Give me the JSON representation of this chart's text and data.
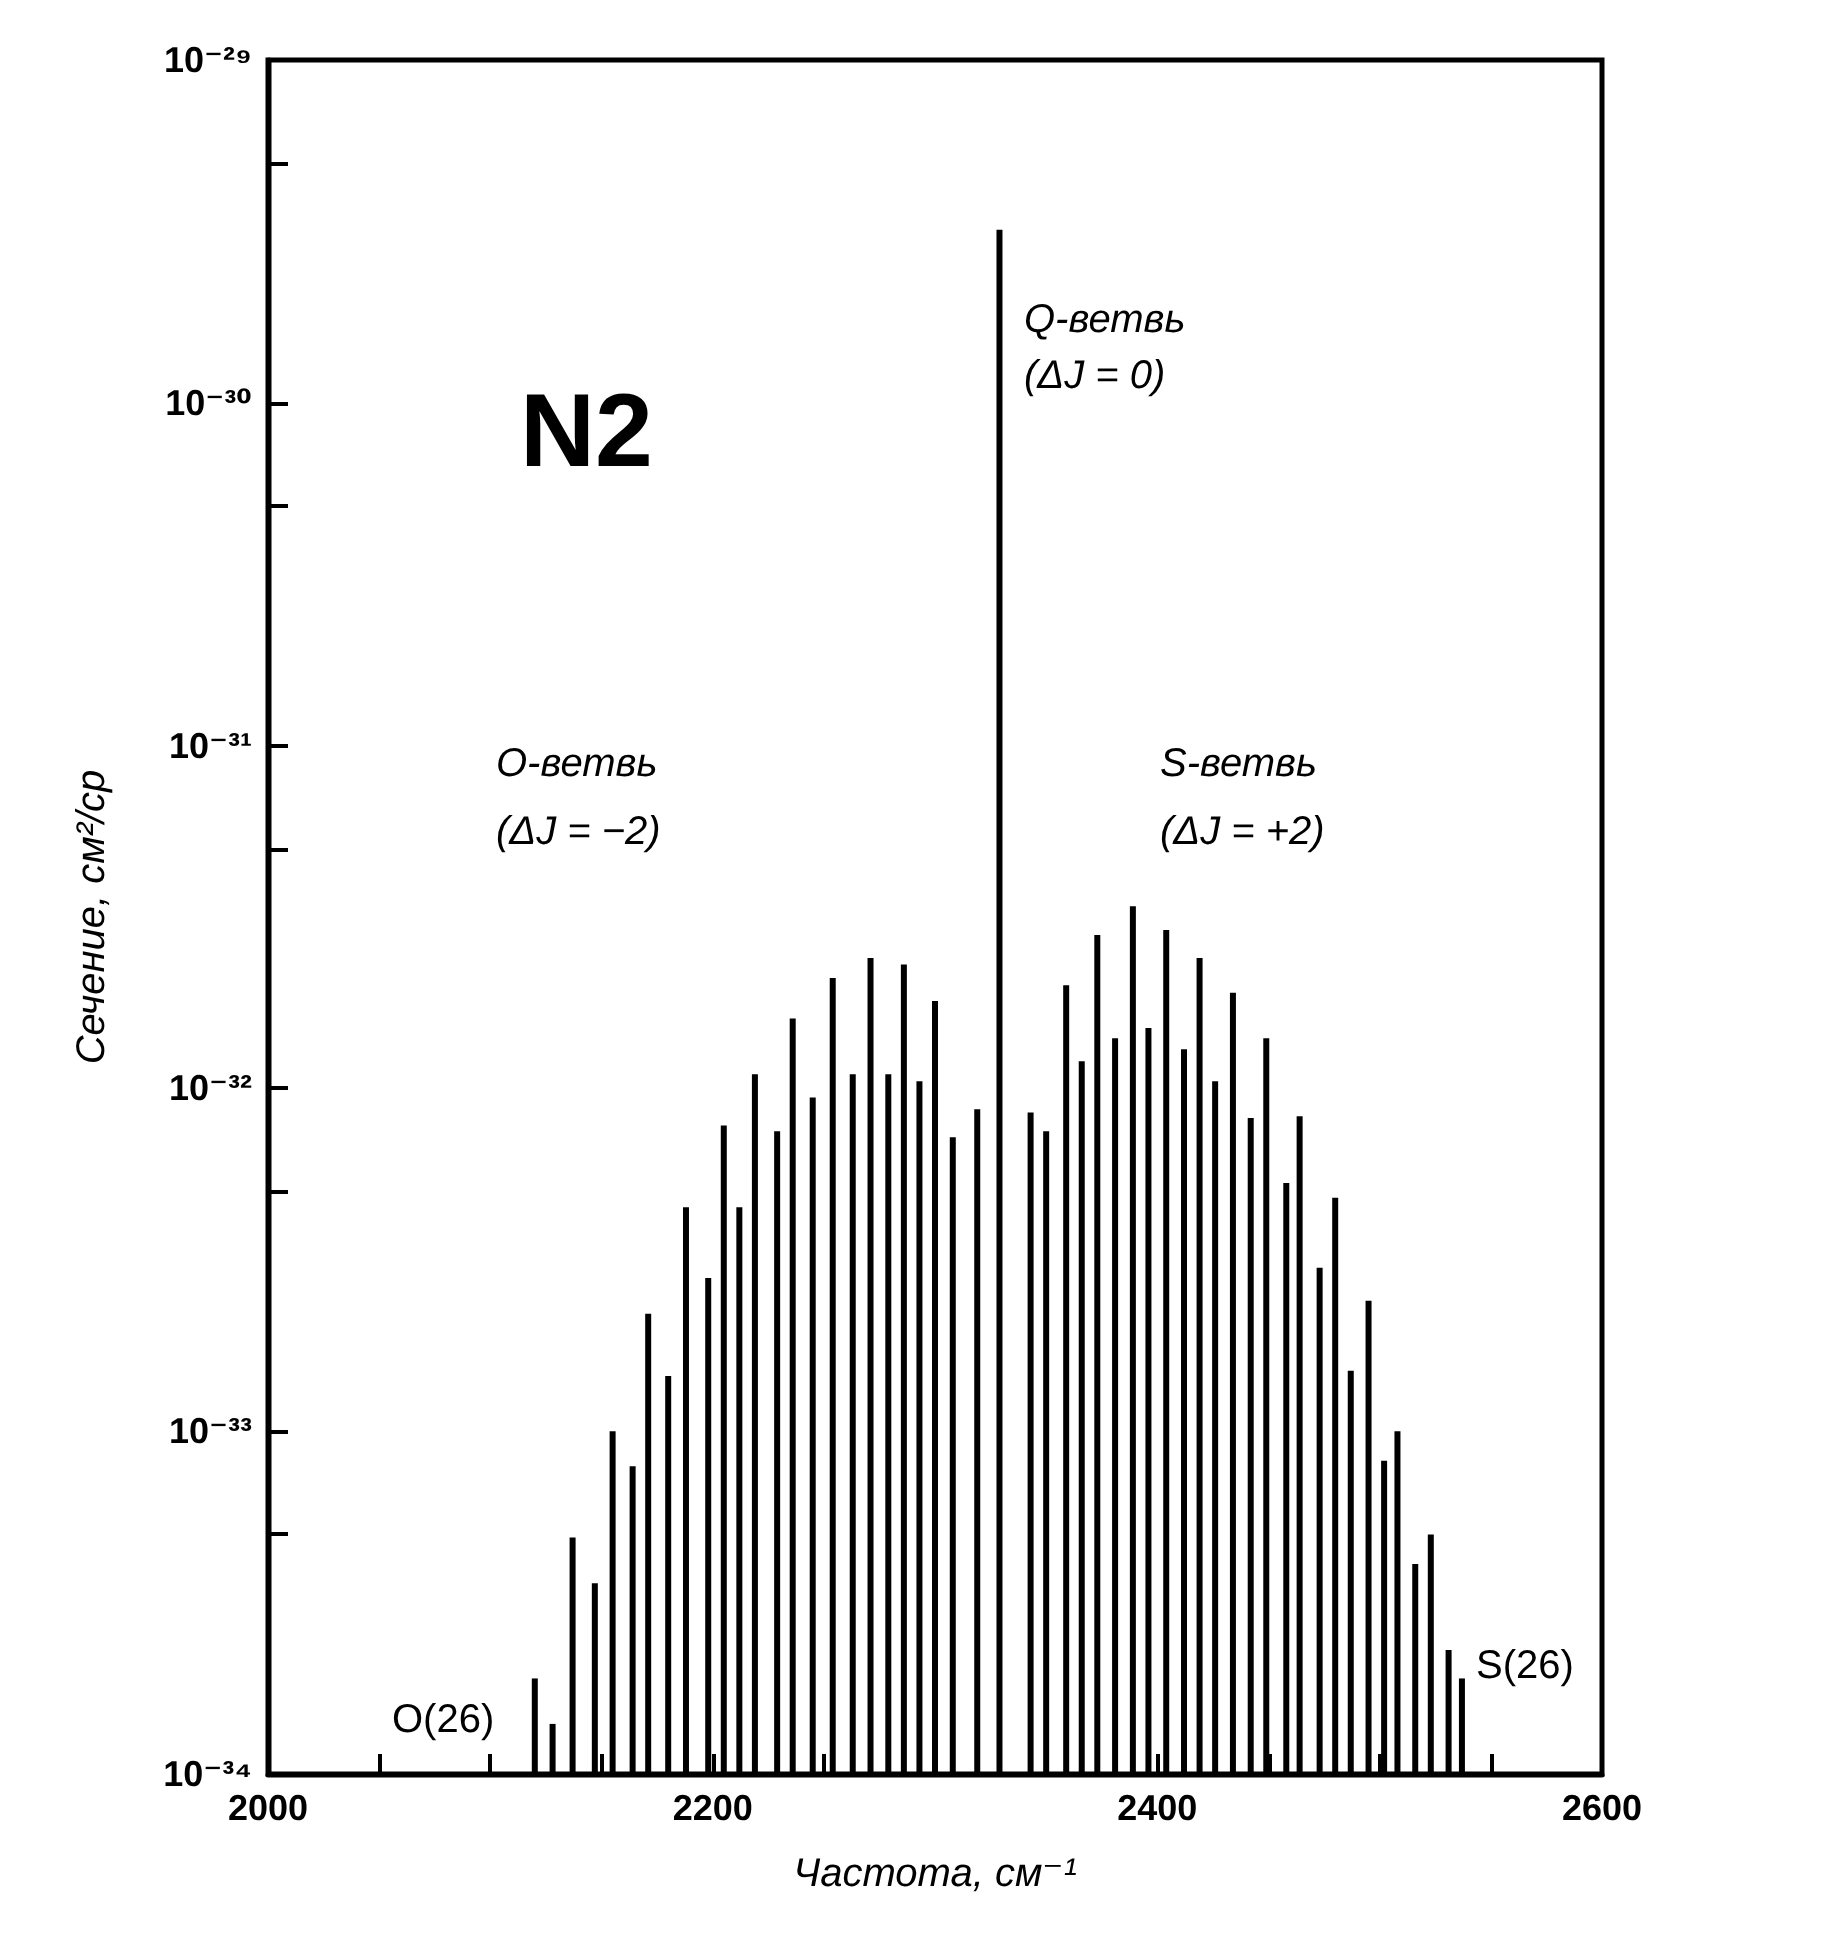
{
  "chart_data": {
    "type": "bar",
    "xlabel": "Частота, см⁻¹",
    "ylabel": "Сечение, см²/ср",
    "log": "y",
    "grid": false,
    "color": "#000000",
    "x": [
      2120,
      2128,
      2137,
      2147,
      2155,
      2164,
      2171,
      2180,
      2188,
      2198,
      2205,
      2212,
      2219,
      2229,
      2236,
      2245,
      2254,
      2263,
      2271,
      2279,
      2286,
      2293,
      2300,
      2308,
      2319,
      2329,
      2343,
      2350,
      2359,
      2366,
      2373,
      2381,
      2389,
      2396,
      2404,
      2412,
      2419,
      2426,
      2434,
      2442,
      2449,
      2458,
      2464,
      2473,
      2480,
      2487,
      2495,
      2502,
      2508,
      2516,
      2523,
      2531,
      2537
    ],
    "values": [
      1.9e-34,
      1.4e-34,
      4.9e-34,
      3.6e-34,
      1e-33,
      7.9e-34,
      2.2e-33,
      1.45e-33,
      4.5e-33,
      2.8e-33,
      7.8e-33,
      4.5e-33,
      1.1e-32,
      7.5e-33,
      1.6e-32,
      9.4e-33,
      2.1e-32,
      1.1e-32,
      2.4e-32,
      1.1e-32,
      2.3e-32,
      1.05e-32,
      1.8e-32,
      7.2e-33,
      8.7e-33,
      3.2e-30,
      8.5e-33,
      7.5e-33,
      2e-32,
      1.2e-32,
      2.8e-32,
      1.4e-32,
      3.4e-32,
      1.5e-32,
      2.9e-32,
      1.3e-32,
      2.4e-32,
      1.05e-32,
      1.9e-32,
      8.2e-33,
      1.4e-32,
      5.3e-33,
      8.3e-33,
      3e-33,
      4.8e-33,
      1.5e-33,
      2.4e-33,
      8.2e-34,
      1e-33,
      4.1e-34,
      5e-34,
      2.3e-34,
      1.9e-34
    ],
    "xlim": [
      2000,
      2600
    ],
    "xticks": [
      2000,
      {
        "value": 2050,
        "label": null
      },
      {
        "value": 2100,
        "label": null
      },
      {
        "value": 2150,
        "label": null
      },
      2200,
      {
        "value": 2250,
        "label": null
      },
      {
        "value": 2300,
        "label": null
      },
      {
        "value": 2350,
        "label": null
      },
      2400,
      {
        "value": 2450,
        "label": null
      },
      {
        "value": 2500,
        "label": null
      },
      {
        "value": 2550,
        "label": null
      },
      2600
    ],
    "ylim": [
      1e-34,
      1e-29
    ],
    "yticks": [
      {
        "value": 1e-34,
        "label": "10⁻³⁴"
      },
      {
        "value": 5e-34,
        "label": null
      },
      {
        "value": 1e-33,
        "label": "10⁻³³"
      },
      {
        "value": 5e-33,
        "label": null
      },
      {
        "value": 1e-32,
        "label": "10⁻³²"
      },
      {
        "value": 5e-32,
        "label": null
      },
      {
        "value": 1e-31,
        "label": "10⁻³¹"
      },
      {
        "value": 5e-31,
        "label": null
      },
      {
        "value": 1e-30,
        "label": "10⁻³⁰"
      },
      {
        "value": 5e-30,
        "label": null
      },
      {
        "value": 1e-29,
        "label": "10⁻²⁹"
      }
    ],
    "annotations": [
      "N2",
      "Q-ветвь",
      "(ΔJ = 0)",
      "O-ветвь",
      "(ΔJ = −2)",
      "S-ветвь",
      "(ΔJ = +2)",
      "O(26)",
      "S(26)"
    ]
  }
}
